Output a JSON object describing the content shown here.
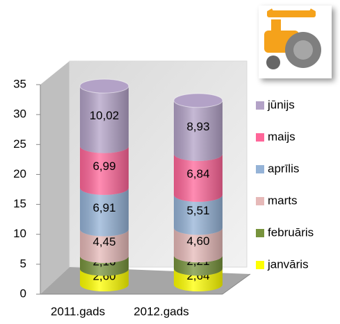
{
  "chart_data": {
    "type": "stacked-cylinder",
    "categories": [
      "2011.gads",
      "2012.gads"
    ],
    "series": [
      {
        "name": "janvāris",
        "color": "#ffff00",
        "values": [
          2.6,
          2.64
        ],
        "value_labels": [
          "2,60",
          "2,64"
        ]
      },
      {
        "name": "februāris",
        "color": "#77933c",
        "values": [
          2.16,
          2.21
        ],
        "value_labels": [
          "2,16",
          "2,21"
        ]
      },
      {
        "name": "marts",
        "color": "#e6b9b8",
        "values": [
          4.45,
          4.6
        ],
        "value_labels": [
          "4,45",
          "4,60"
        ]
      },
      {
        "name": "aprīlis",
        "color": "#95b3d7",
        "values": [
          6.91,
          5.51
        ],
        "value_labels": [
          "6,91",
          "5,51"
        ]
      },
      {
        "name": "maijs",
        "color": "#ff6699",
        "values": [
          6.99,
          6.84
        ],
        "value_labels": [
          "6,99",
          "6,84"
        ]
      },
      {
        "name": "jūnijs",
        "color": "#b3a2c7",
        "values": [
          10.02,
          8.93
        ],
        "value_labels": [
          "10,02",
          "8,93"
        ]
      }
    ],
    "ylim": [
      0,
      35
    ],
    "yticks": [
      0,
      5,
      10,
      15,
      20,
      25,
      30,
      35
    ],
    "legend": "right"
  }
}
